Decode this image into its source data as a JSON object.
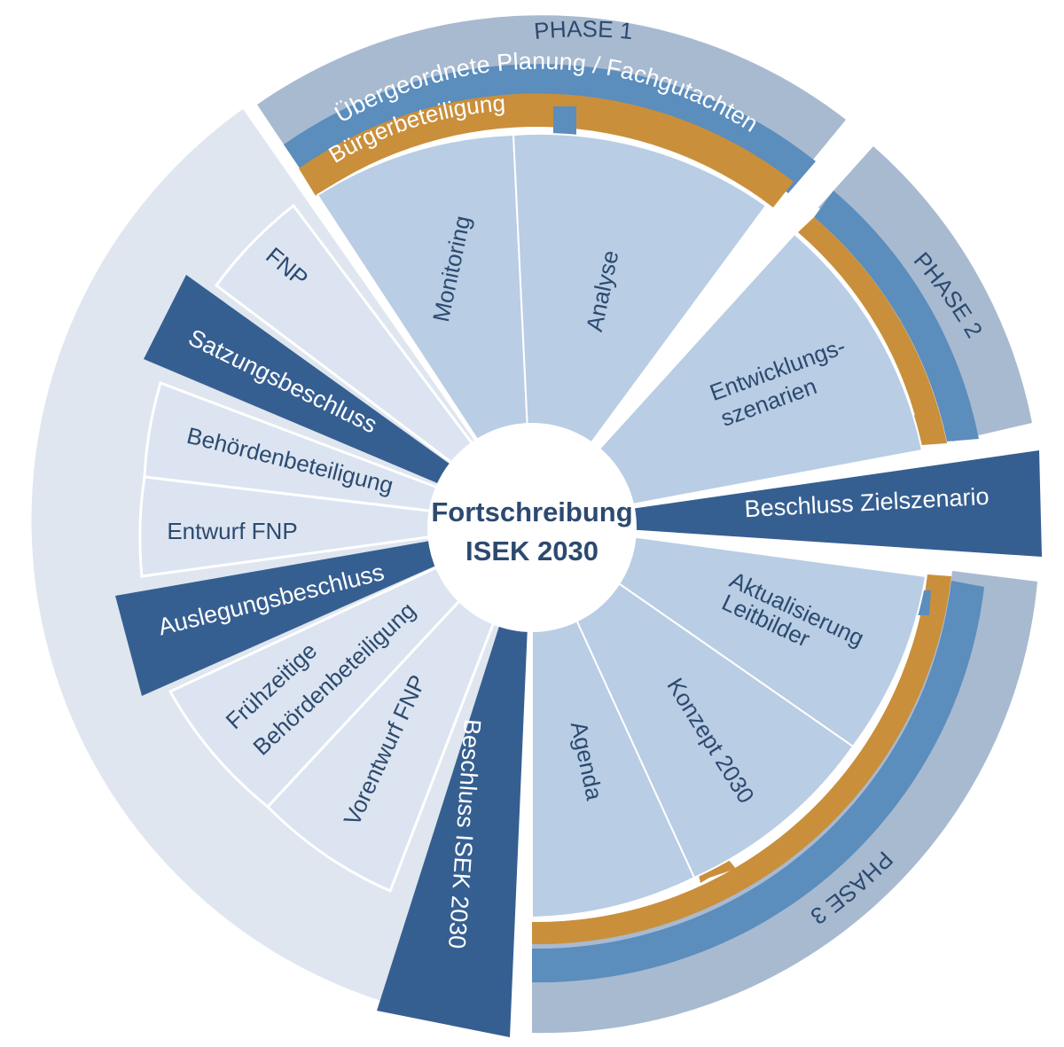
{
  "center": {
    "line1": "Fortschreibung",
    "line2": "ISEK 2030"
  },
  "phases": {
    "p1": "PHASE 1",
    "p2": "PHASE 2",
    "p3": "PHASE 3"
  },
  "bands": {
    "blue": "Übergeordnete Planung / Fachgutachten",
    "orange": "Bürgerbeteiligung"
  },
  "isek_steps": {
    "monitoring": "Monitoring",
    "analyse": "Analyse",
    "entwicklung1": "Entwicklungs-",
    "entwicklung2": "szenarien",
    "leitbilder1": "Aktualisierung",
    "leitbilder2": "Leitbilder",
    "konzept": "Konzept 2030",
    "agenda": "Agenda"
  },
  "fnp_steps": {
    "fnp": "FNP",
    "behoerden": "Behördenbeteiligung",
    "entwurf": "Entwurf FNP",
    "fruehzeitig1": "Frühzeitige",
    "fruehzeitig2": "Behördenbeteiligung",
    "vorentwurf": "Vorentwurf FNP"
  },
  "decisions": {
    "satzung": "Satzungsbeschluss",
    "auslegung": "Auslegungsbeschluss",
    "zielszenario": "Beschluss Zielszenario",
    "isek": "Beschluss ISEK 2030"
  },
  "colors": {
    "dark_navy": "#365f91",
    "phase_band": "#a8bad0",
    "isek_segment": "#b9cde4",
    "fnp_segment": "#dbe4f0",
    "outer_light": "#dfe6ef",
    "blue_band": "#5b8dbd",
    "orange_band": "#c98f3b",
    "text_navy": "#2c4a70"
  }
}
